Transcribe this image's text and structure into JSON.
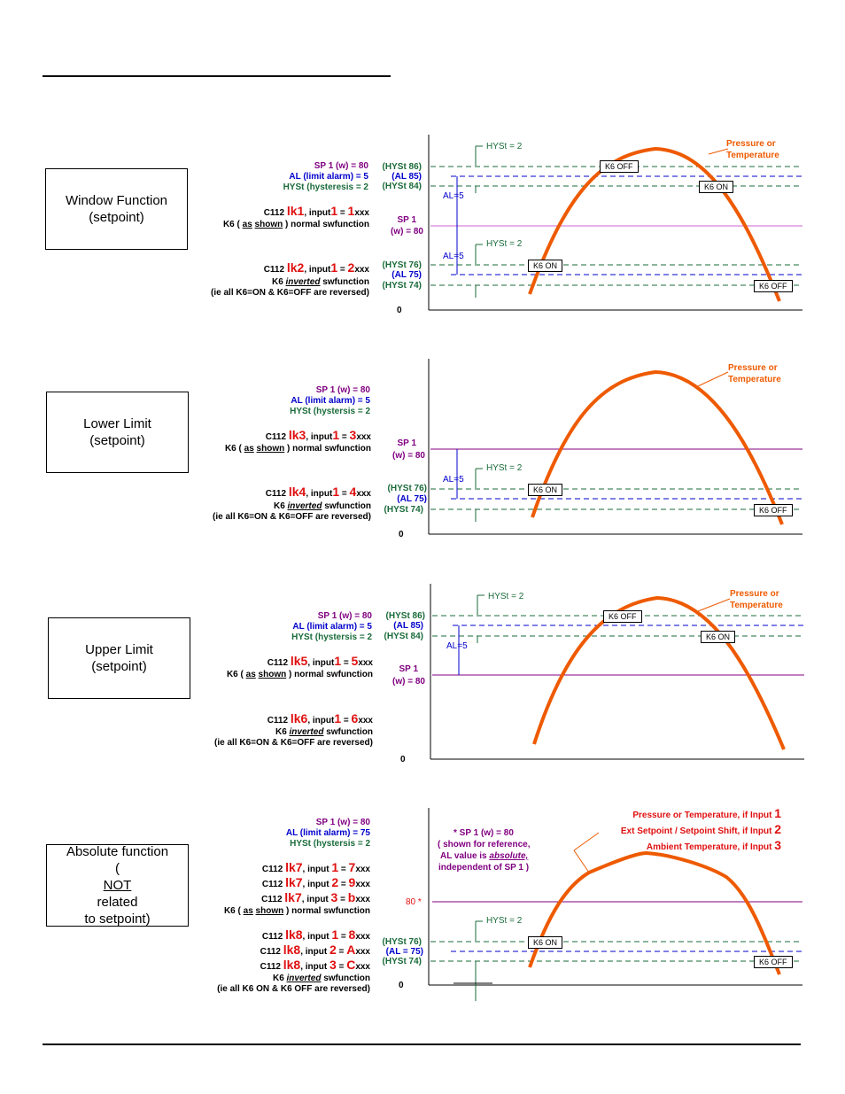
{
  "sections": {
    "window": {
      "box": [
        "Window Function",
        "(setpoint)"
      ],
      "params": [
        "SP 1 (w) = 80",
        "AL (limit alarm) = 5",
        "HYSt (hysteresis = 2"
      ],
      "lk_a": {
        "pre": "C112",
        "code": "lk1",
        "mid": ", input",
        "num": "1",
        "eq": " = ",
        "val": "1",
        "post": "xxx"
      },
      "sw_a": {
        "k6": "K6 (",
        "as": "as",
        "shown": "shown",
        "rest": ") normal swfunction"
      },
      "lk_b": {
        "pre": "C112",
        "code": "lk2",
        "mid": ", input",
        "num": "1",
        "eq": " = ",
        "val": "2",
        "post": "xxx"
      },
      "sw_b": {
        "k6": "K6 ",
        "inv": "inverted",
        "rest": " swfunction"
      },
      "note": "(ie all K6=ON  & K6=OFF are reversed)",
      "levels": [
        "(HYSt 86)",
        "(AL 85)",
        "(HYSt 84)",
        "(HYSt 76)",
        "(AL 75)",
        "(HYSt 74)"
      ],
      "sp_a": "SP 1",
      "sp_b": "(w) = 80",
      "hyst": "HYSt  = 2",
      "al": "AL=5",
      "zero": "0",
      "curve": [
        "Pressure or",
        "Temperature"
      ],
      "k6off": "K6 OFF",
      "k6on": "K6 ON"
    },
    "lower": {
      "box": [
        "Lower Limit",
        "(setpoint)"
      ],
      "params": [
        "SP 1 (w) = 80",
        "AL (limit alarm) = 5",
        "HYSt (hystersis = 2"
      ],
      "lk_a": {
        "pre": "C112",
        "code": "lk3",
        "mid": ", input",
        "num": "1",
        "eq": " = ",
        "val": "3",
        "post": "xxx"
      },
      "sw_a": {
        "k6": "K6 (",
        "as": "as",
        "shown": "shown",
        "rest": ") normal swfunction"
      },
      "lk_b": {
        "pre": "C112",
        "code": "lk4",
        "mid": ", input",
        "num": "1",
        "eq": " = ",
        "val": "4",
        "post": "xxx"
      },
      "sw_b": {
        "k6": "K6 ",
        "inv": "inverted",
        "rest": " swfunction"
      },
      "note": "(ie all K6=ON & K6=OFF are reversed)",
      "levels": [
        "(HYSt 76)",
        "(AL 75)",
        "(HYSt 74)"
      ],
      "sp_a": "SP 1",
      "sp_b": "(w) = 80",
      "hyst": "HYSt  = 2",
      "al": "AL=5",
      "zero": "0",
      "curve": [
        "Pressure or",
        "Temperature"
      ],
      "k6off": "K6 OFF",
      "k6on": "K6 ON"
    },
    "upper": {
      "box": [
        "Upper Limit",
        "(setpoint)"
      ],
      "params": [
        "SP 1 (w) = 80",
        "AL (limit alarm) = 5",
        "HYSt (hystersis = 2"
      ],
      "lk_a": {
        "pre": "C112",
        "code": "lk5",
        "mid": ", input",
        "num": "1",
        "eq": " = ",
        "val": "5",
        "post": "xxx"
      },
      "sw_a": {
        "k6": "K6 (",
        "as": "as",
        "shown": "shown",
        "rest": ") normal swfunction"
      },
      "lk_b": {
        "pre": "C112",
        "code": "lk6",
        "mid": ", input",
        "num": "1",
        "eq": " = ",
        "val": "6",
        "post": "xxx"
      },
      "sw_b": {
        "k6": "K6 ",
        "inv": "inverted",
        "rest": " swfunction"
      },
      "note": "(ie all K6=ON & K6=OFF are reversed)",
      "levels": [
        "(HYSt 86)",
        "(AL 85)",
        "(HYSt 84)"
      ],
      "sp_a": "SP 1",
      "sp_b": "(w) = 80",
      "hyst": "HYSt  = 2",
      "al": "AL=5",
      "zero": "0",
      "curve": [
        "Pressure or",
        "Temperature"
      ],
      "k6off": "K6 OFF",
      "k6on": "K6 ON"
    },
    "absolute": {
      "box": [
        "Absolute function",
        "NOT",
        " related",
        "to setpoint)"
      ],
      "box_open": "(",
      "params": [
        "SP 1 (w) = 80",
        "AL (limit alarm) = 75",
        "HYSt (hystersis = 2"
      ],
      "lk_a1": {
        "pre": "C112",
        "code": "lk7",
        "mid": ", input ",
        "num": "1",
        "eq": " = ",
        "val": "7",
        "post": "xxx"
      },
      "lk_a2": {
        "pre": "C112",
        "code": "lk7",
        "mid": ", input ",
        "num": "2",
        "eq": " = ",
        "val": "9",
        "post": "xxx"
      },
      "lk_a3": {
        "pre": "C112",
        "code": "lk7",
        "mid": ", input ",
        "num": "3",
        "eq": " = ",
        "val": "b",
        "post": "xxx"
      },
      "sw_a": {
        "k6": "K6 (",
        "as": "as",
        "shown": "shown",
        "rest": ") normal swfunction"
      },
      "lk_b1": {
        "pre": "C112",
        "code": "lk8",
        "mid": ", input ",
        "num": "1",
        "eq": " = ",
        "val": "8",
        "post": "xxx"
      },
      "lk_b2": {
        "pre": "C112",
        "code": "lk8",
        "mid": ", input ",
        "num": "2",
        "eq": " = ",
        "val": "A",
        "post": "xxx"
      },
      "lk_b3": {
        "pre": "C112",
        "code": "lk8",
        "mid": ", input ",
        "num": "3",
        "eq": " = ",
        "val": "C",
        "post": "xxx"
      },
      "sw_b": {
        "k6": "K6 ",
        "inv": "inverted",
        "rest": " swfunction"
      },
      "note": "(ie all   K6 ON   &   K6 OFF   are reversed)",
      "ref": [
        "*  SP 1 (w) = 80",
        "( shown for reference,",
        "AL value is ",
        "absolute,",
        "independent of SP 1 )"
      ],
      "inputs": [
        {
          "text": "Pressure or Temperature, if Input ",
          "num": "1"
        },
        {
          "text": "Ext Setpoint / Setpoint Shift, if Input ",
          "num": "2"
        },
        {
          "text": "Ambient Temperature, if Input ",
          "num": "3"
        }
      ],
      "levels": [
        "(HYSt 76)",
        "(AL = 75)",
        "(HYSt 74)"
      ],
      "eighty": "80 *",
      "hyst": "HYSt  = 2",
      "zero": "0",
      "k6off": "K6 OFF",
      "k6on": "K6 ON"
    }
  },
  "colors": {
    "purple": "#800080",
    "blue": "#0000cc",
    "green": "#1a6b3a",
    "red": "#e01010",
    "orange": "#ee5a00"
  }
}
